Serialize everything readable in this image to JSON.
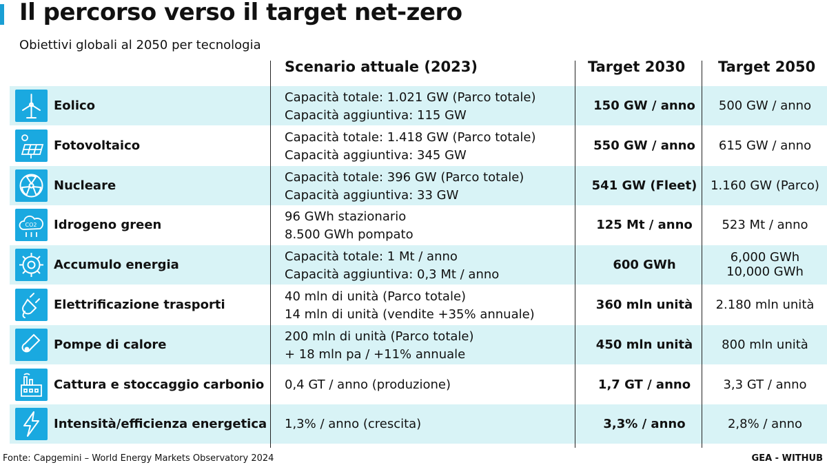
{
  "title": "Il percorso verso il target net-zero",
  "subtitle": "Obiettivi globali al 2050 per tecnologia",
  "columns": {
    "scenario": "Scenario attuale (2023)",
    "t2030": "Target 2030",
    "t2050": "Target 2050"
  },
  "rows": [
    {
      "label": "Eolico",
      "icon": "wind-turbine-icon",
      "scenario": [
        "Capacità totale: 1.021 GW (Parco totale)",
        "Capacità aggiuntiva: 115 GW"
      ],
      "t2030": "150 GW / anno",
      "t2050": [
        "500 GW / anno"
      ]
    },
    {
      "label": "Fotovoltaico",
      "icon": "solar-panel-icon",
      "scenario": [
        "Capacità totale: 1.418 GW (Parco totale)",
        "Capacità aggiuntiva: 345 GW"
      ],
      "t2030": "550 GW / anno",
      "t2050": [
        "615 GW / anno"
      ]
    },
    {
      "label": "Nucleare",
      "icon": "nuclear-icon",
      "scenario": [
        "Capacità totale: 396 GW (Parco totale)",
        "Capacità aggiuntiva: 33 GW"
      ],
      "t2030": "541 GW (Fleet)",
      "t2050": [
        "1.160 GW (Parco)"
      ]
    },
    {
      "label": "Idrogeno green",
      "icon": "hydrogen-cloud-icon",
      "scenario": [
        "96 GWh stazionario",
        "8.500 GWh pompato"
      ],
      "t2030": "125 Mt / anno",
      "t2050": [
        "523 Mt / anno"
      ]
    },
    {
      "label": "Accumulo energia",
      "icon": "energy-storage-gear-icon",
      "scenario": [
        "Capacità totale: 1 Mt / anno",
        "Capacità aggiuntiva: 0,3 Mt / anno"
      ],
      "t2030": "600 GWh",
      "t2050": [
        "6,000 GWh",
        "10,000 GWh"
      ]
    },
    {
      "label": "Elettrificazione trasporti",
      "icon": "ev-plug-icon",
      "scenario": [
        "40 mln di unità (Parco totale)",
        "14 mln di unità (vendite +35% annuale)"
      ],
      "t2030": "360 mln unità",
      "t2050": [
        "2.180 mln unità"
      ]
    },
    {
      "label": "Pompe di calore",
      "icon": "thermometer-icon",
      "scenario": [
        "200 mln di unità (Parco totale)",
        "+ 18 mln pa / +11% annuale"
      ],
      "t2030": "450 mln unità",
      "t2050": [
        "800 mln unità"
      ]
    },
    {
      "label": "Cattura e stoccaggio carbonio",
      "icon": "factory-icon",
      "scenario": [
        "0,4 GT / anno (produzione)"
      ],
      "t2030": "1,7 GT / anno",
      "t2050": [
        "3,3 GT / anno"
      ]
    },
    {
      "label": "Intensità/efficienza energetica",
      "icon": "lightning-bolt-icon",
      "scenario": [
        "1,3% / anno (crescita)"
      ],
      "t2030": "3,3% / anno",
      "t2050": [
        "2,8% / anno"
      ]
    }
  ],
  "source": "Fonte: Capgemini – World Energy Markets Observatory 2024",
  "credit": "GEA - WITHUB",
  "colors": {
    "accent": "#1aa9e0",
    "row_alt": "#d8f3f6",
    "text": "#111111"
  },
  "chart_data": {
    "type": "table",
    "title": "Il percorso verso il target net-zero",
    "subtitle": "Obiettivi globali al 2050 per tecnologia",
    "columns": [
      "",
      "Scenario attuale (2023)",
      "Target 2030",
      "Target 2050"
    ],
    "rows": [
      [
        "Eolico",
        "Capacità totale: 1.021 GW (Parco totale) / Capacità aggiuntiva: 115 GW",
        "150 GW / anno",
        "500 GW / anno"
      ],
      [
        "Fotovoltaico",
        "Capacità totale: 1.418 GW (Parco totale) / Capacità aggiuntiva: 345 GW",
        "550 GW / anno",
        "615 GW / anno"
      ],
      [
        "Nucleare",
        "Capacità totale: 396 GW (Parco totale) / Capacità aggiuntiva: 33 GW",
        "541 GW (Fleet)",
        "1.160 GW (Parco)"
      ],
      [
        "Idrogeno green",
        "96 GWh stazionario / 8.500 GWh pompato",
        "125 Mt / anno",
        "523 Mt / anno"
      ],
      [
        "Accumulo energia",
        "Capacità totale: 1 Mt / anno / Capacità aggiuntiva: 0,3 Mt / anno",
        "600 GWh",
        "6,000 GWh / 10,000 GWh"
      ],
      [
        "Elettrificazione trasporti",
        "40 mln di unità (Parco totale) / 14 mln di unità (vendite +35% annuale)",
        "360 mln unità",
        "2.180 mln unità"
      ],
      [
        "Pompe di calore",
        "200 mln di unità (Parco totale) / + 18 mln pa / +11% annuale",
        "450 mln unità",
        "800 mln unità"
      ],
      [
        "Cattura e stoccaggio carbonio",
        "0,4 GT / anno (produzione)",
        "1,7 GT / anno",
        "3,3 GT / anno"
      ],
      [
        "Intensità/efficienza energetica",
        "1,3% / anno (crescita)",
        "3,3% / anno",
        "2,8% / anno"
      ]
    ]
  }
}
